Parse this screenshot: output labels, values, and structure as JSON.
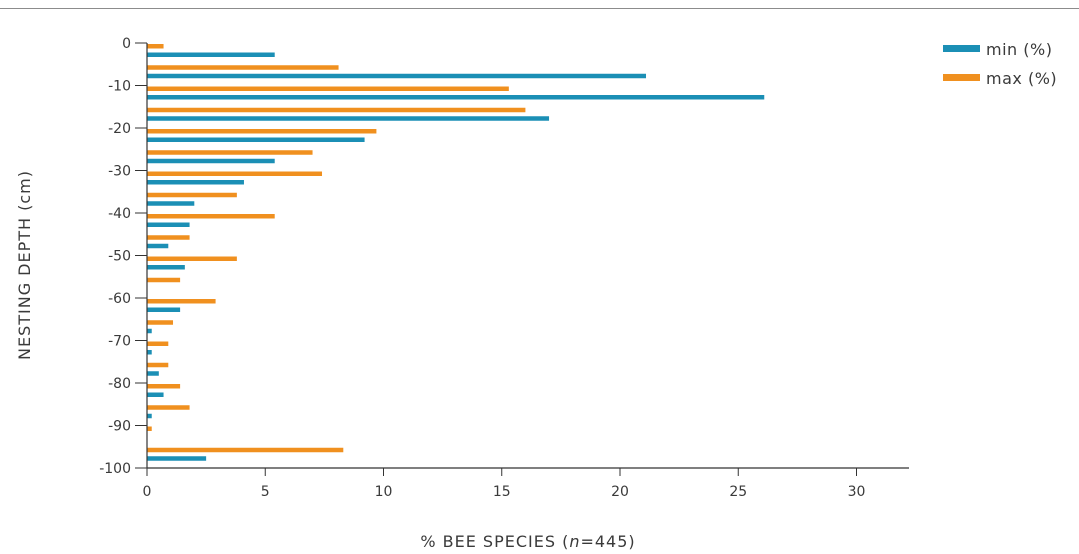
{
  "chart_data": {
    "type": "bar",
    "orientation": "horizontal",
    "xlabel_parts": {
      "before": "% BEE SPECIES (",
      "italic": "n",
      "after": "=445)"
    },
    "ylabel": "NESTING DEPTH (cm)",
    "xlim": [
      0,
      32
    ],
    "ylim": [
      -100,
      0
    ],
    "x_ticks": [
      "0",
      "5",
      "10",
      "15",
      "20",
      "25",
      "30"
    ],
    "y_ticks": [
      "0",
      "-10",
      "-20",
      "-30",
      "-40",
      "-50",
      "-60",
      "-70",
      "-80",
      "-90",
      "-100"
    ],
    "legend_position": "top-right",
    "grid": false,
    "categories": [
      0,
      -5,
      -10,
      -15,
      -20,
      -25,
      -30,
      -35,
      -40,
      -45,
      -50,
      -55,
      -60,
      -65,
      -70,
      -75,
      -80,
      -85,
      -90,
      -95
    ],
    "series": [
      {
        "name": "min (%)",
        "color": "#1b8fb5",
        "values": [
          5.4,
          21.1,
          26.1,
          17.0,
          9.2,
          5.4,
          4.1,
          2.0,
          1.8,
          0.9,
          1.6,
          0.0,
          1.4,
          0.2,
          0.2,
          0.5,
          0.7,
          0.2,
          0.0,
          2.5
        ]
      },
      {
        "name": "max (%)",
        "color": "#f0901f",
        "values": [
          0.7,
          8.1,
          15.3,
          16.0,
          9.7,
          7.0,
          7.4,
          3.8,
          5.4,
          1.8,
          3.8,
          1.4,
          2.9,
          1.1,
          0.9,
          0.9,
          1.4,
          1.8,
          0.2,
          8.3
        ]
      }
    ]
  }
}
